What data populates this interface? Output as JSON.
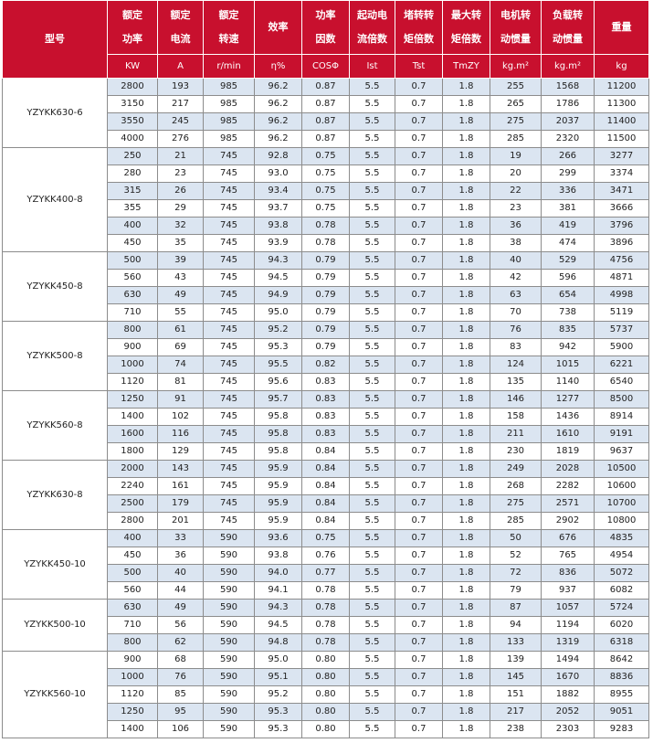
{
  "header": {
    "columns": [
      [
        "型号"
      ],
      [
        "额定",
        "功率"
      ],
      [
        "额定",
        "电流"
      ],
      [
        "额定",
        "转速"
      ],
      [
        "效率"
      ],
      [
        "功率",
        "因数"
      ],
      [
        "起动电",
        "流倍数"
      ],
      [
        "堵转转",
        "矩倍数"
      ],
      [
        "最大转",
        "矩倍数"
      ],
      [
        "电机转",
        "动惯量"
      ],
      [
        "负载转",
        "动惯量"
      ],
      [
        "重量"
      ]
    ],
    "units": [
      "KW",
      "A",
      "r/min",
      "η%",
      "COSΦ",
      "Ist",
      "Tst",
      "TmZY",
      "kg.m²",
      "kg.m²",
      "kg"
    ]
  },
  "groups": [
    {
      "model": "YZYKK630-6",
      "rows": [
        [
          "2800",
          "193",
          "985",
          "96.2",
          "0.87",
          "5.5",
          "0.7",
          "1.8",
          "255",
          "1568",
          "11200"
        ],
        [
          "3150",
          "217",
          "985",
          "96.2",
          "0.87",
          "5.5",
          "0.7",
          "1.8",
          "265",
          "1786",
          "11300"
        ],
        [
          "3550",
          "245",
          "985",
          "96.2",
          "0.87",
          "5.5",
          "0.7",
          "1.8",
          "275",
          "2037",
          "11400"
        ],
        [
          "4000",
          "276",
          "985",
          "96.2",
          "0.87",
          "5.5",
          "0.7",
          "1.8",
          "285",
          "2320",
          "11500"
        ]
      ]
    },
    {
      "model": "YZYKK400-8",
      "rows": [
        [
          "250",
          "21",
          "745",
          "92.8",
          "0.75",
          "5.5",
          "0.7",
          "1.8",
          "19",
          "266",
          "3277"
        ],
        [
          "280",
          "23",
          "745",
          "93.0",
          "0.75",
          "5.5",
          "0.7",
          "1.8",
          "20",
          "299",
          "3374"
        ],
        [
          "315",
          "26",
          "745",
          "93.4",
          "0.75",
          "5.5",
          "0.7",
          "1.8",
          "22",
          "336",
          "3471"
        ],
        [
          "355",
          "29",
          "745",
          "93.7",
          "0.75",
          "5.5",
          "0.7",
          "1.8",
          "23",
          "381",
          "3666"
        ],
        [
          "400",
          "32",
          "745",
          "93.8",
          "0.78",
          "5.5",
          "0.7",
          "1.8",
          "36",
          "419",
          "3796"
        ],
        [
          "450",
          "35",
          "745",
          "93.9",
          "0.78",
          "5.5",
          "0.7",
          "1.8",
          "38",
          "474",
          "3896"
        ]
      ]
    },
    {
      "model": "YZYKK450-8",
      "rows": [
        [
          "500",
          "39",
          "745",
          "94.3",
          "0.79",
          "5.5",
          "0.7",
          "1.8",
          "40",
          "529",
          "4756"
        ],
        [
          "560",
          "43",
          "745",
          "94.5",
          "0.79",
          "5.5",
          "0.7",
          "1.8",
          "42",
          "596",
          "4871"
        ],
        [
          "630",
          "49",
          "745",
          "94.9",
          "0.79",
          "5.5",
          "0.7",
          "1.8",
          "63",
          "654",
          "4998"
        ],
        [
          "710",
          "55",
          "745",
          "95.0",
          "0.79",
          "5.5",
          "0.7",
          "1.8",
          "70",
          "738",
          "5119"
        ]
      ]
    },
    {
      "model": "YZYKK500-8",
      "rows": [
        [
          "800",
          "61",
          "745",
          "95.2",
          "0.79",
          "5.5",
          "0.7",
          "1.8",
          "76",
          "835",
          "5737"
        ],
        [
          "900",
          "69",
          "745",
          "95.3",
          "0.79",
          "5.5",
          "0.7",
          "1.8",
          "83",
          "942",
          "5900"
        ],
        [
          "1000",
          "74",
          "745",
          "95.5",
          "0.82",
          "5.5",
          "0.7",
          "1.8",
          "124",
          "1015",
          "6221"
        ],
        [
          "1120",
          "81",
          "745",
          "95.6",
          "0.83",
          "5.5",
          "0.7",
          "1.8",
          "135",
          "1140",
          "6540"
        ]
      ]
    },
    {
      "model": "YZYKK560-8",
      "rows": [
        [
          "1250",
          "91",
          "745",
          "95.7",
          "0.83",
          "5.5",
          "0.7",
          "1.8",
          "146",
          "1277",
          "8500"
        ],
        [
          "1400",
          "102",
          "745",
          "95.8",
          "0.83",
          "5.5",
          "0.7",
          "1.8",
          "158",
          "1436",
          "8914"
        ],
        [
          "1600",
          "116",
          "745",
          "95.8",
          "0.83",
          "5.5",
          "0.7",
          "1.8",
          "211",
          "1610",
          "9191"
        ],
        [
          "1800",
          "129",
          "745",
          "95.8",
          "0.84",
          "5.5",
          "0.7",
          "1.8",
          "230",
          "1819",
          "9637"
        ]
      ]
    },
    {
      "model": "YZYKK630-8",
      "rows": [
        [
          "2000",
          "143",
          "745",
          "95.9",
          "0.84",
          "5.5",
          "0.7",
          "1.8",
          "249",
          "2028",
          "10500"
        ],
        [
          "2240",
          "161",
          "745",
          "95.9",
          "0.84",
          "5.5",
          "0.7",
          "1.8",
          "268",
          "2282",
          "10600"
        ],
        [
          "2500",
          "179",
          "745",
          "95.9",
          "0.84",
          "5.5",
          "0.7",
          "1.8",
          "275",
          "2571",
          "10700"
        ],
        [
          "2800",
          "201",
          "745",
          "95.9",
          "0.84",
          "5.5",
          "0.7",
          "1.8",
          "285",
          "2902",
          "10800"
        ]
      ]
    },
    {
      "model": "YZYKK450-10",
      "rows": [
        [
          "400",
          "33",
          "590",
          "93.6",
          "0.75",
          "5.5",
          "0.7",
          "1.8",
          "50",
          "676",
          "4835"
        ],
        [
          "450",
          "36",
          "590",
          "93.8",
          "0.76",
          "5.5",
          "0.7",
          "1.8",
          "52",
          "765",
          "4954"
        ],
        [
          "500",
          "40",
          "590",
          "94.0",
          "0.77",
          "5.5",
          "0.7",
          "1.8",
          "72",
          "836",
          "5072"
        ],
        [
          "560",
          "44",
          "590",
          "94.1",
          "0.78",
          "5.5",
          "0.7",
          "1.8",
          "79",
          "937",
          "6082"
        ]
      ]
    },
    {
      "model": "YZYKK500-10",
      "rows": [
        [
          "630",
          "49",
          "590",
          "94.3",
          "0.78",
          "5.5",
          "0.7",
          "1.8",
          "87",
          "1057",
          "5724"
        ],
        [
          "710",
          "56",
          "590",
          "94.5",
          "0.78",
          "5.5",
          "0.7",
          "1.8",
          "94",
          "1194",
          "6020"
        ],
        [
          "800",
          "62",
          "590",
          "94.8",
          "0.78",
          "5.5",
          "0.7",
          "1.8",
          "133",
          "1319",
          "6318"
        ]
      ]
    },
    {
      "model": "YZYKK560-10",
      "rows": [
        [
          "900",
          "68",
          "590",
          "95.0",
          "0.80",
          "5.5",
          "0.7",
          "1.8",
          "139",
          "1494",
          "8642"
        ],
        [
          "1000",
          "76",
          "590",
          "95.1",
          "0.80",
          "5.5",
          "0.7",
          "1.8",
          "145",
          "1670",
          "8836"
        ],
        [
          "1120",
          "85",
          "590",
          "95.2",
          "0.80",
          "5.5",
          "0.7",
          "1.8",
          "151",
          "1882",
          "8955"
        ],
        [
          "1250",
          "95",
          "590",
          "95.3",
          "0.80",
          "5.5",
          "0.7",
          "1.8",
          "217",
          "2052",
          "9051"
        ],
        [
          "1400",
          "106",
          "590",
          "95.3",
          "0.80",
          "5.5",
          "0.7",
          "1.8",
          "238",
          "2303",
          "9283"
        ]
      ]
    }
  ]
}
